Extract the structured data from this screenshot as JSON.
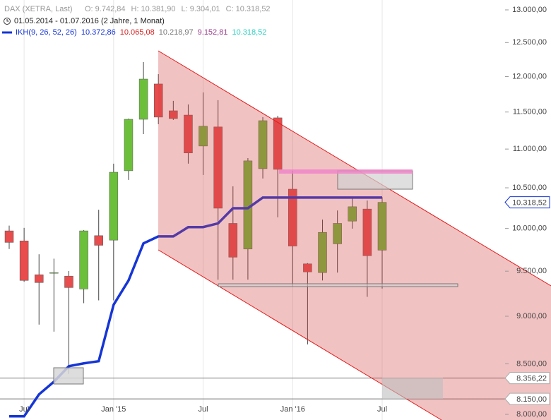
{
  "chart_data": {
    "type": "candlestick",
    "header": {
      "instrument": "DAX (XETRA, Last)",
      "ohlc": [
        "O: 9.742,84",
        "H: 10.381,90",
        "L: 9.304,01",
        "C: 10.318,52"
      ],
      "range": "01.05.2014 - 01.07.2016 (2 Jahre, 1 Monat)"
    },
    "categories": [
      null,
      "Jul",
      null,
      null,
      null,
      null,
      null,
      "Jan '15",
      null,
      null,
      null,
      null,
      null,
      "Jul",
      null,
      null,
      null,
      null,
      null,
      "Jan '16",
      null,
      null,
      null,
      null,
      null,
      "Jul"
    ],
    "open": [
      9971,
      9852,
      9460,
      9476,
      9444,
      9299,
      9914,
      9861,
      10717,
      11400,
      11894,
      11517,
      11458,
      11040,
      11296,
      10061,
      9756,
      10744,
      11420,
      10483,
      9584,
      9484,
      9817,
      10089,
      10236,
      9742.84
    ],
    "high": [
      10034,
      10007,
      9695,
      9644,
      9501,
      9980,
      10227,
      10809,
      11410,
      12210,
      12035,
      11655,
      11605,
      11774,
      11665,
      10518,
      10881,
      11430,
      11449,
      10717,
      9593,
      10107,
      10218,
      10369,
      10341,
      10381.9
    ],
    "low": [
      9756,
      9380,
      8910,
      8835,
      8397,
      9142,
      9173,
      9173,
      10600,
      11199,
      11333,
      11391,
      10809,
      10663,
      9403,
      9403,
      9403,
      10618,
      10135,
      9323,
      8701,
      9395,
      9484,
      9998,
      9212,
      9304.01
    ],
    "close": [
      9834,
      9395,
      9371,
      9484,
      9315,
      9971,
      9800,
      10698,
      11400,
      11964,
      11430,
      11410,
      10948,
      11305,
      10246,
      9661,
      10845,
      11381,
      10735,
      9791,
      9492,
      9953,
      10061,
      10264,
      9678,
      10318.52
    ],
    "up_color": "#6cbf3a",
    "down_color": "#e84c4c",
    "series": [
      {
        "name": "IKH(9, 26, 52, 26)",
        "color": "#1535d6",
        "values": [
          7981,
          7981,
          8194,
          8320,
          8476,
          8505,
          8527,
          9125,
          9395,
          9822,
          9905,
          9905,
          10016,
          10016,
          10061,
          10246,
          10246,
          10378,
          10378,
          10378,
          10378,
          10378,
          10378,
          10378,
          10378,
          10378
        ]
      }
    ],
    "indicator_readout": [
      {
        "text": "10.372,86",
        "color": "#1535d6"
      },
      {
        "text": "10.065,08",
        "color": "#d42020"
      },
      {
        "text": "10.218,97",
        "color": "#777777"
      },
      {
        "text": "9.152,81",
        "color": "#9a3a8a"
      },
      {
        "text": "10.318,52",
        "color": "#2ad0c0"
      }
    ],
    "last_label": "10.318,52",
    "hlines": [
      {
        "value": 8356.22,
        "label": "8.356,22"
      },
      {
        "value": 8150,
        "label": "8.150,00"
      }
    ],
    "log_scale": true,
    "ylim": [
      8000,
      13000
    ],
    "yticks": [
      {
        "value": 8000,
        "label": "8.000,00"
      },
      {
        "value": 8500,
        "label": "8.500,00"
      },
      {
        "value": 9000,
        "label": "9.000,00"
      },
      {
        "value": 9500,
        "label": "9.500,00"
      },
      {
        "value": 10000,
        "label": "10.000,00"
      },
      {
        "value": 10500,
        "label": "10.500,00"
      },
      {
        "value": 11000,
        "label": "11.000,00"
      },
      {
        "value": 11500,
        "label": "11.500,00"
      },
      {
        "value": 12000,
        "label": "12.000,00"
      },
      {
        "value": 12500,
        "label": "12.500,00"
      },
      {
        "value": 13000,
        "label": "13.000,00"
      }
    ],
    "grid": true
  }
}
